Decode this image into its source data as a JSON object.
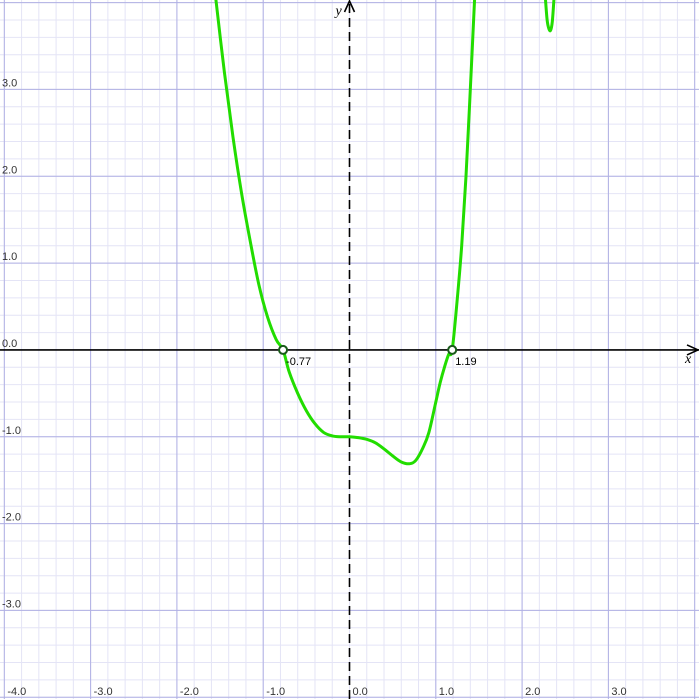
{
  "chart_data": {
    "type": "line",
    "title": "",
    "xlabel": "x",
    "ylabel": "y",
    "xlim": [
      -4.05,
      4.05
    ],
    "ylim": [
      -4.02,
      4.03
    ],
    "grid": true,
    "minor_grid": true,
    "x_ticks": [
      {
        "value": -4.0,
        "label": "-4.0"
      },
      {
        "value": -3.0,
        "label": "-3.0"
      },
      {
        "value": -2.0,
        "label": "-2.0"
      },
      {
        "value": -1.0,
        "label": "-1.0"
      },
      {
        "value": 0.0,
        "label": "0.0"
      },
      {
        "value": 1.0,
        "label": "1.0"
      },
      {
        "value": 2.0,
        "label": "2.0"
      },
      {
        "value": 3.0,
        "label": "3.0"
      }
    ],
    "y_ticks": [
      {
        "value": 3.0,
        "label": "3.0"
      },
      {
        "value": 2.0,
        "label": "2.0"
      },
      {
        "value": 1.0,
        "label": "1.0"
      },
      {
        "value": 0.0,
        "label": "0.0"
      },
      {
        "value": -1.0,
        "label": "-1.0"
      },
      {
        "value": -2.0,
        "label": "-2.0"
      },
      {
        "value": -3.0,
        "label": "-3.0"
      }
    ],
    "series": [
      {
        "color": "#22dd00",
        "x": [
          -1.55,
          -1.45,
          -1.35,
          -1.25,
          -1.15,
          -1.05,
          -0.95,
          -0.85,
          -0.77,
          -0.7,
          -0.6,
          -0.5,
          -0.4,
          -0.3,
          -0.2,
          -0.1,
          0.0,
          0.1,
          0.2,
          0.3,
          0.4,
          0.5,
          0.6,
          0.7,
          0.77,
          0.85,
          0.92,
          1.0,
          1.05,
          1.1,
          1.15,
          1.19,
          1.25,
          1.3,
          1.35,
          1.4,
          1.45
        ],
        "y": [
          4.05,
          3.2,
          2.45,
          1.8,
          1.25,
          0.75,
          0.38,
          0.12,
          0.0,
          -0.25,
          -0.5,
          -0.7,
          -0.85,
          -0.95,
          -0.99,
          -1.0,
          -1.0,
          -1.01,
          -1.03,
          -1.07,
          -1.14,
          -1.22,
          -1.29,
          -1.31,
          -1.27,
          -1.13,
          -0.95,
          -0.6,
          -0.38,
          -0.2,
          -0.05,
          0.0,
          0.6,
          1.2,
          2.0,
          3.0,
          4.05
        ]
      },
      {
        "color": "#22dd00",
        "x": [
          2.27,
          2.29,
          2.31,
          2.33,
          2.35,
          2.37
        ],
        "y": [
          4.05,
          3.8,
          3.7,
          3.68,
          3.78,
          4.05
        ]
      }
    ],
    "points": [
      {
        "x": -0.77,
        "y": 0.0,
        "label": "-0.77"
      },
      {
        "x": 1.19,
        "y": 0.0,
        "label": "1.19"
      }
    ]
  }
}
